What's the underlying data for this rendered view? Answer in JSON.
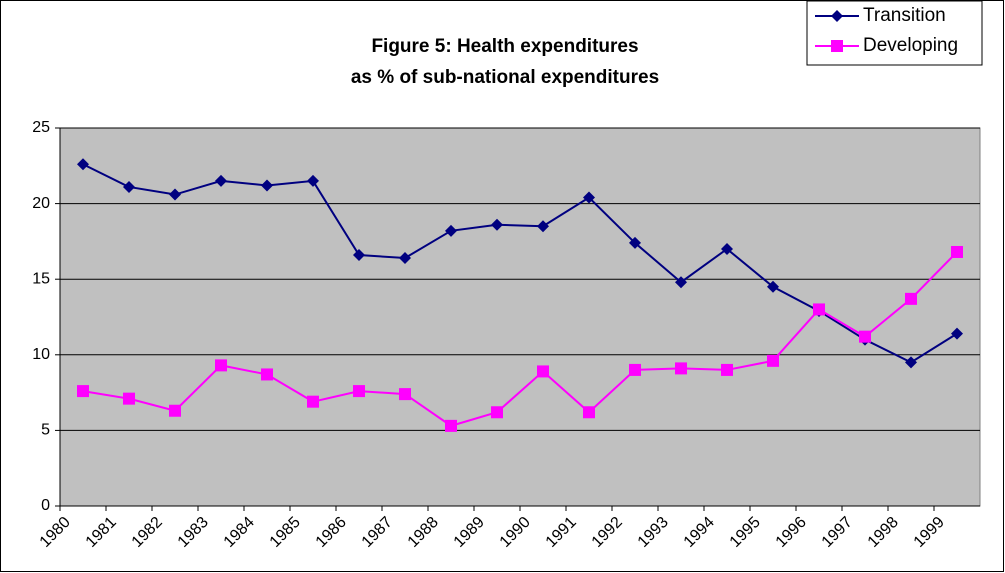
{
  "chart_data": {
    "type": "line",
    "title": [
      "Figure 5: Health expenditures",
      "as % of sub-national expenditures"
    ],
    "categories": [
      "1980",
      "1981",
      "1982",
      "1983",
      "1984",
      "1985",
      "1986",
      "1987",
      "1988",
      "1989",
      "1990",
      "1991",
      "1992",
      "1993",
      "1994",
      "1995",
      "1996",
      "1997",
      "1998",
      "1999"
    ],
    "series": [
      {
        "name": "Transition",
        "color": "#000080",
        "marker": "diamond",
        "values": [
          22.6,
          21.1,
          20.6,
          21.5,
          21.2,
          21.5,
          16.6,
          16.4,
          18.2,
          18.6,
          18.5,
          20.4,
          17.4,
          14.8,
          17.0,
          14.5,
          12.9,
          11.0,
          9.5,
          11.4
        ]
      },
      {
        "name": "Developing",
        "color": "#ff00ff",
        "marker": "square",
        "values": [
          7.6,
          7.1,
          6.3,
          9.3,
          8.7,
          6.9,
          7.6,
          7.4,
          5.3,
          6.2,
          8.9,
          6.2,
          9.0,
          9.1,
          9.0,
          9.6,
          13.0,
          11.2,
          13.7,
          16.8
        ]
      }
    ],
    "ylim": [
      0,
      25
    ],
    "yticks": [
      0,
      5,
      10,
      15,
      20,
      25
    ],
    "grid": true,
    "legend": "top-right",
    "plot_background": "#c0c0c0"
  }
}
